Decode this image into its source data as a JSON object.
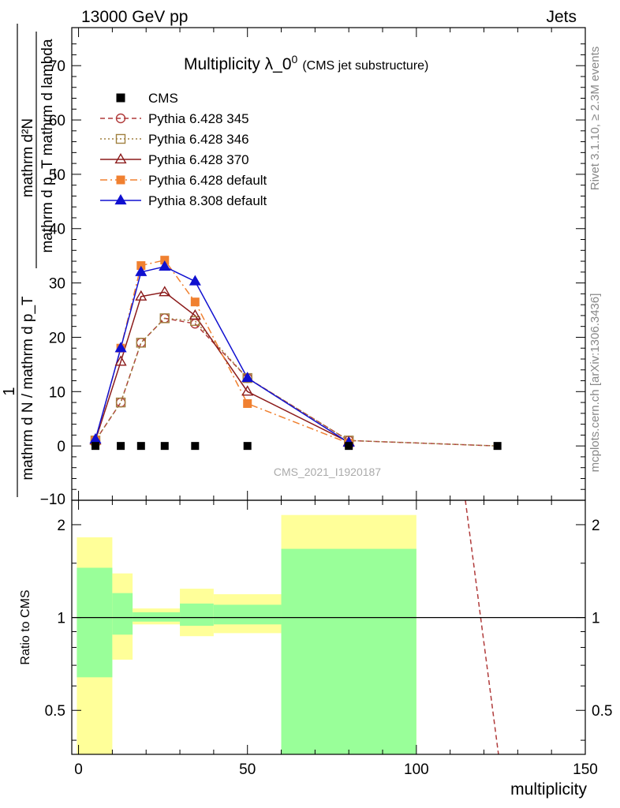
{
  "header": {
    "left": "13000 GeV pp",
    "right": "Jets"
  },
  "side_labels": {
    "rivet": "Rivet 3.1.10, ≥ 2.3M events",
    "mcplots": "mcplots.cern.ch [arXiv:1306.3436]"
  },
  "chart_data": [
    {
      "type": "line",
      "title_main": "Multiplicity λ_0",
      "title_sup": "0",
      "title_sub": "(CMS jet substructure)",
      "ylabel_top": "mathrm d²N",
      "ylabel_bottom": "mathrm d p_T mathrm d lambda",
      "ylabel_outer_top": "1",
      "ylabel_outer_bottom": "mathrm d N / mathrm d p_T",
      "watermark": "CMS_2021_I1920187",
      "xlim": [
        -2,
        150
      ],
      "ylim": [
        -10,
        77
      ],
      "y_ticks": [
        0,
        10,
        20,
        30,
        40,
        50,
        60,
        70
      ],
      "y_tick_labels": [
        "0",
        "10",
        "20",
        "30",
        "40",
        "50",
        "60",
        "70"
      ],
      "y_partial_tick_label": "−10",
      "legend_position": "top-left",
      "series": [
        {
          "name": "CMS",
          "color": "#000000",
          "marker": "square-filled",
          "line": "none",
          "x": [
            5,
            12.5,
            18.5,
            25.5,
            34.5,
            50,
            80,
            124
          ],
          "y": [
            0,
            0,
            0,
            0,
            0,
            0,
            0,
            0
          ]
        },
        {
          "name": "Pythia 6.428 345",
          "color": "#b03a3a",
          "marker": "circle-open",
          "line": "dashed",
          "x": [
            5,
            12.5,
            18.5,
            25.5,
            34.5,
            50,
            80,
            124
          ],
          "y": [
            1.0,
            8.0,
            19.0,
            23.5,
            22.5,
            12.5,
            1.0,
            0.0
          ]
        },
        {
          "name": "Pythia 6.428 346",
          "color": "#a08040",
          "marker": "square-open",
          "line": "dotted",
          "x": [
            5,
            12.5,
            18.5,
            25.5,
            34.5,
            50,
            80,
            124
          ],
          "y": [
            1.0,
            8.0,
            19.0,
            23.5,
            23.0,
            12.5,
            1.0,
            0.0
          ]
        },
        {
          "name": "Pythia 6.428 370",
          "color": "#8b1a1a",
          "marker": "triangle-open",
          "line": "solid",
          "x": [
            5,
            12.5,
            18.5,
            25.5,
            34.5,
            50,
            80
          ],
          "y": [
            1.0,
            15.5,
            27.5,
            28.3,
            24.0,
            10.0,
            0.7
          ]
        },
        {
          "name": "Pythia 6.428 default",
          "color": "#f08030",
          "marker": "square-filled",
          "line": "dashdot",
          "x": [
            5,
            12.5,
            18.5,
            25.5,
            34.5,
            50,
            80
          ],
          "y": [
            1.0,
            18.0,
            33.2,
            34.2,
            26.5,
            7.8,
            0.5
          ]
        },
        {
          "name": "Pythia 8.308 default",
          "color": "#1010d0",
          "marker": "triangle-filled",
          "line": "solid",
          "x": [
            5,
            12.5,
            18.5,
            25.5,
            34.5,
            50,
            80
          ],
          "y": [
            1.2,
            18.0,
            32.0,
            33.0,
            30.3,
            12.5,
            0.6
          ]
        }
      ]
    },
    {
      "type": "area",
      "ylabel": "Ratio to CMS",
      "xlabel": "multiplicity",
      "xlim": [
        -2,
        150
      ],
      "ylim": [
        0.36,
        2.4
      ],
      "log_scale_y": true,
      "x_ticks": [
        0,
        50,
        100,
        150
      ],
      "x_tick_labels": [
        "0",
        "50",
        "100",
        "150"
      ],
      "y_ticks": [
        0.5,
        1,
        2
      ],
      "y_tick_labels": [
        "0.5",
        "1",
        "2"
      ],
      "reference_line": 1,
      "bands": [
        {
          "x0": -0.5,
          "x1": 10,
          "yellow": [
            0.36,
            1.82
          ],
          "green": [
            0.64,
            1.45
          ]
        },
        {
          "x0": 10,
          "x1": 16,
          "yellow": [
            0.73,
            1.39
          ],
          "green": [
            0.88,
            1.2
          ]
        },
        {
          "x0": 16,
          "x1": 30,
          "yellow": [
            0.95,
            1.07
          ],
          "green": [
            0.97,
            1.04
          ]
        },
        {
          "x0": 30,
          "x1": 40,
          "yellow": [
            0.87,
            1.24
          ],
          "green": [
            0.94,
            1.11
          ]
        },
        {
          "x0": 40,
          "x1": 60,
          "yellow": [
            0.89,
            1.19
          ],
          "green": [
            0.95,
            1.1
          ]
        },
        {
          "x0": 60,
          "x1": 100,
          "yellow": [
            0.36,
            2.15
          ],
          "green": [
            0.36,
            1.67
          ]
        }
      ],
      "band_colors": {
        "outer": "#ffff99",
        "inner": "#99ff99"
      },
      "ratio_curve": {
        "color": "#b03a3a",
        "line": "dashed",
        "x": [
          114.5,
          124.3
        ],
        "y": [
          2.4,
          0.36
        ]
      }
    }
  ]
}
